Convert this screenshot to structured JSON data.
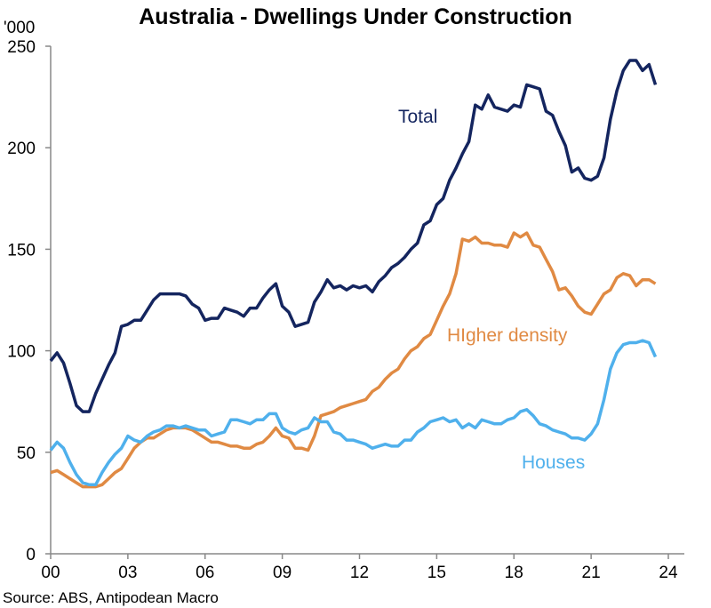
{
  "chart_data": {
    "type": "line",
    "title": "Australia - Dwellings Under Construction",
    "ylabel": "'000",
    "source": "Source: ABS, Antipodean Macro",
    "ylim": [
      0,
      250
    ],
    "xlim": [
      2000,
      2024
    ],
    "yticks": [
      "0",
      "50",
      "100",
      "150",
      "200",
      "250"
    ],
    "xticks": [
      "00",
      "03",
      "06",
      "09",
      "12",
      "15",
      "18",
      "21",
      "24"
    ],
    "x_start": "2000 Q1",
    "frequency": "quarterly",
    "grid": false,
    "legend": "inline labels",
    "series": [
      {
        "name": "Total",
        "color": "#14255f",
        "values": [
          95,
          99,
          94,
          84,
          73,
          70,
          70,
          79,
          86,
          93,
          99,
          112,
          113,
          115,
          115,
          120,
          125,
          128,
          128,
          128,
          128,
          127,
          123,
          121,
          115,
          116,
          116,
          121,
          120,
          119,
          117,
          121,
          121,
          126,
          130,
          133,
          122,
          119,
          112,
          113,
          114,
          124,
          129,
          135,
          131,
          132,
          130,
          132,
          131,
          132,
          129,
          134,
          137,
          141,
          143,
          146,
          150,
          153,
          162,
          164,
          172,
          175,
          184,
          190,
          197,
          203,
          221,
          219,
          226,
          220,
          219,
          218,
          221,
          220,
          231,
          230,
          229,
          218,
          216,
          208,
          201,
          188,
          190,
          185,
          184,
          186,
          195,
          214,
          228,
          238,
          243,
          243,
          238,
          241,
          231
        ]
      },
      {
        "name": "HIgher density",
        "color": "#e08a43",
        "values": [
          40,
          41,
          39,
          37,
          35,
          33,
          33,
          33,
          34,
          37,
          40,
          42,
          47,
          52,
          55,
          57,
          57,
          59,
          61,
          62,
          62,
          62,
          61,
          59,
          57,
          55,
          55,
          54,
          53,
          53,
          52,
          52,
          54,
          55,
          58,
          62,
          58,
          57,
          52,
          52,
          51,
          58,
          68,
          69,
          70,
          72,
          73,
          74,
          75,
          76,
          80,
          82,
          86,
          89,
          91,
          96,
          100,
          102,
          106,
          108,
          115,
          122,
          128,
          138,
          155,
          154,
          156,
          153,
          153,
          152,
          152,
          151,
          158,
          156,
          158,
          152,
          151,
          145,
          139,
          130,
          131,
          127,
          122,
          119,
          118,
          123,
          128,
          130,
          136,
          138,
          137,
          132,
          135,
          135,
          133
        ]
      },
      {
        "name": "Houses",
        "color": "#4fb0ec",
        "values": [
          51,
          55,
          52,
          45,
          39,
          35,
          34,
          34,
          40,
          45,
          49,
          52,
          58,
          56,
          55,
          58,
          60,
          61,
          63,
          63,
          62,
          63,
          62,
          61,
          61,
          58,
          59,
          60,
          66,
          66,
          65,
          64,
          66,
          66,
          69,
          69,
          62,
          60,
          59,
          61,
          62,
          67,
          65,
          65,
          60,
          59,
          56,
          56,
          55,
          54,
          52,
          53,
          54,
          53,
          53,
          56,
          56,
          60,
          62,
          65,
          66,
          67,
          65,
          66,
          62,
          64,
          62,
          66,
          65,
          64,
          64,
          66,
          67,
          70,
          71,
          68,
          64,
          63,
          61,
          60,
          59,
          57,
          57,
          56,
          59,
          64,
          76,
          91,
          99,
          103,
          104,
          104,
          105,
          104,
          97
        ]
      }
    ]
  }
}
